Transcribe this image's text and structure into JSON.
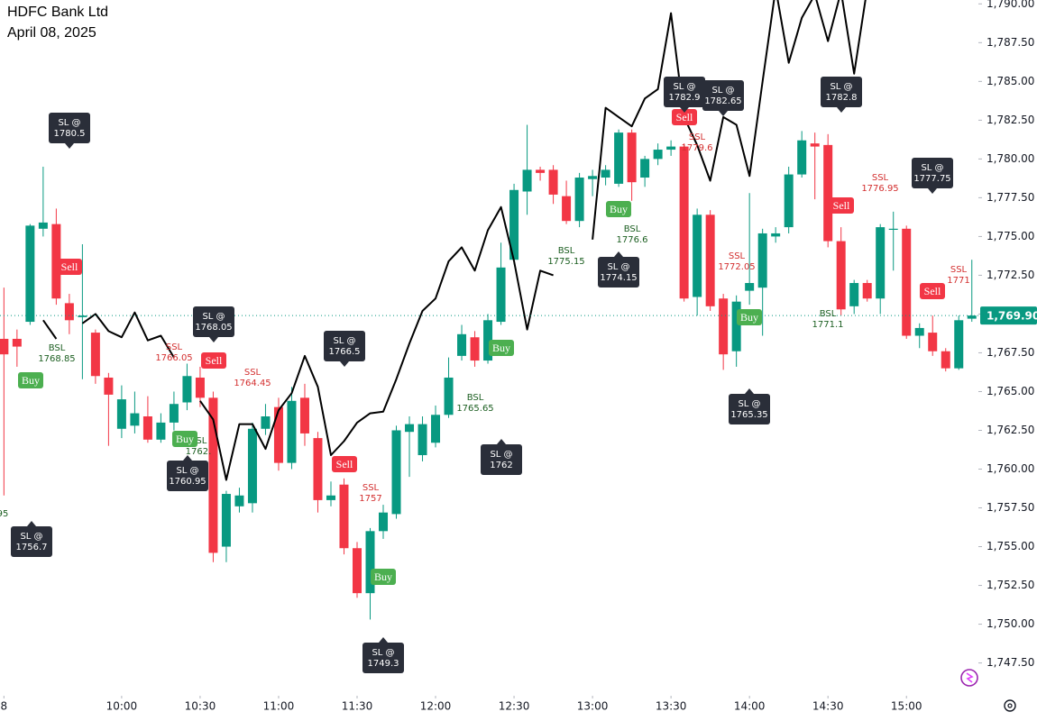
{
  "chart_data": {
    "type": "candlestick",
    "title": "HDFC Bank Ltd",
    "subtitle": "April 08, 2025",
    "up_color": "#089981",
    "down_color": "#f23645",
    "open": [
      1768.4,
      1768.4,
      1769.5,
      1775.5,
      1775.8,
      1770.7,
      1769.8,
      1768.8,
      1765.9,
      1762.6,
      1762.8,
      1763.4,
      1761.9,
      1763,
      1764.3,
      1765.9,
      1764.6,
      1755,
      1757.6,
      1757.8,
      1762.6,
      1764,
      1760.4,
      1764.6,
      1762,
      1758,
      1759,
      1754.9,
      1752,
      1756,
      1757.1,
      1762.4,
      1760.9,
      1761.7,
      1763.5,
      1767.3,
      1768.5,
      1767,
      1769.5,
      1773.5,
      1777.9,
      1779.3,
      1779.3,
      1777.6,
      1776,
      1778.7,
      1778.8,
      1778.4,
      1781.7,
      1778.8,
      1780,
      1780.6,
      1780.8,
      1771.1,
      1776.4,
      1771,
      1767.6,
      1771.5,
      1771.7,
      1775,
      1775.6,
      1779,
      1781,
      1780.9,
      1774.7,
      1770.5,
      1772,
      1771,
      1775.5,
      1775.5,
      1768.6,
      1768.8,
      1767.6,
      1766.5,
      1769.7
    ],
    "high": [
      1771.7,
      1769,
      1775.8,
      1779.5,
      1776.8,
      1771.3,
      1774.5,
      1769,
      1766.2,
      1765.4,
      1765,
      1764.7,
      1763.6,
      1765,
      1766.8,
      1766.6,
      1765,
      1758.6,
      1758.8,
      1763,
      1764.2,
      1764.6,
      1765.3,
      1765.5,
      1762.4,
      1759.2,
      1759.4,
      1755.3,
      1756.2,
      1757.7,
      1762.8,
      1763.4,
      1763.4,
      1764.1,
      1767.2,
      1769.3,
      1768.9,
      1770,
      1774.6,
      1778.4,
      1782.2,
      1779.5,
      1779.6,
      1778.6,
      1779.1,
      1779.3,
      1779.6,
      1781.9,
      1781.9,
      1780.2,
      1781,
      1781.2,
      1781,
      1776.8,
      1776.7,
      1771.3,
      1771.2,
      1777.8,
      1775.5,
      1775.6,
      1779.5,
      1781.8,
      1781.7,
      1781.6,
      1775.6,
      1772.2,
      1772.2,
      1775.8,
      1776.6,
      1775.7,
      1769.4,
      1769.9,
      1767.8,
      1769.9,
      1773.5
    ],
    "low": [
      1758.3,
      1766.6,
      1769.3,
      1775,
      1770.6,
      1768.7,
      1765.8,
      1765.5,
      1761.5,
      1762,
      1762.3,
      1761.7,
      1761.7,
      1762.5,
      1763.8,
      1764,
      1754,
      1754,
      1757.2,
      1757.2,
      1762.2,
      1759.9,
      1760,
      1761.5,
      1757.2,
      1757.6,
      1754.5,
      1751.7,
      1750.3,
      1755.5,
      1756.8,
      1759.5,
      1760.5,
      1761.4,
      1763.3,
      1767,
      1766.6,
      1766.8,
      1769.3,
      1773.2,
      1776.4,
      1778.6,
      1777.1,
      1775.8,
      1775.6,
      1777.6,
      1778.3,
      1778.2,
      1777.3,
      1778.2,
      1779.6,
      1780.2,
      1770.8,
      1769.9,
      1770.2,
      1766.4,
      1766.6,
      1770.6,
      1768.6,
      1774.6,
      1775.2,
      1778.8,
      1777.4,
      1774.3,
      1769.9,
      1770,
      1770.8,
      1770,
      1772.8,
      1768.4,
      1767.8,
      1767.3,
      1766.3,
      1766.4,
      1769.5
    ],
    "close": [
      1767.4,
      1767.9,
      1775.7,
      1775.9,
      1771,
      1769.6,
      1769.9,
      1766,
      1764.8,
      1764.5,
      1763.6,
      1761.9,
      1763,
      1764.2,
      1766,
      1764.6,
      1754.6,
      1758.4,
      1758.3,
      1762.6,
      1763.4,
      1760.4,
      1764.4,
      1762.3,
      1758,
      1758.3,
      1754.9,
      1752,
      1756,
      1757.2,
      1762.5,
      1762.9,
      1762.9,
      1763.5,
      1765.9,
      1768.7,
      1767,
      1769.6,
      1773,
      1778,
      1779.3,
      1779.1,
      1777.7,
      1776,
      1778.8,
      1778.9,
      1779.3,
      1781.7,
      1778.5,
      1780,
      1780.6,
      1780.8,
      1771,
      1776.4,
      1770.5,
      1767.4,
      1770.8,
      1772,
      1775.2,
      1775.2,
      1779,
      1781.2,
      1780.8,
      1774.7,
      1770.3,
      1772,
      1771,
      1775.6,
      1775.5,
      1768.6,
      1769.1,
      1767.6,
      1766.5,
      1769.6,
      1769.9
    ],
    "line": {
      "color": "#000000",
      "values": [
        null,
        null,
        null,
        1769.6,
        1768.4,
        null,
        1769.4,
        1770,
        1768.9,
        1768.5,
        1770.1,
        1768.3,
        1768.6,
        1767.2,
        null,
        1764.4,
        1763.2,
        1759.3,
        1762.9,
        1762.9,
        1761.3,
        1763.8,
        1764.9,
        1767.3,
        1765.3,
        1760.9,
        1761.8,
        1763,
        1763.6,
        1763.7,
        1765.8,
        1768.1,
        1770.2,
        1771,
        1773.4,
        1774.3,
        1772.8,
        1775.4,
        1776.9,
        1773.4,
        1769,
        1772.8,
        1772.5,
        null,
        null,
        1774.8,
        1783.3,
        1782.7,
        1782.1,
        1783.9,
        1784.5,
        1789.4,
        1782.7,
        1780.9,
        1778.6,
        1782.7,
        1782.2,
        1778.9,
        1785,
        1791,
        1786.2,
        1789.1,
        1790.6,
        1787.6,
        1790.8,
        1785.5,
        1791,
        null,
        null,
        null,
        null,
        null,
        null,
        null,
        null
      ]
    },
    "xlim": [
      -0.3,
      74.5
    ],
    "xticks": [
      {
        "value": 0,
        "label": "8"
      },
      {
        "value": 9,
        "label": "10:00"
      },
      {
        "value": 15,
        "label": "10:30"
      },
      {
        "value": 21,
        "label": "11:00"
      },
      {
        "value": 27,
        "label": "11:30"
      },
      {
        "value": 33,
        "label": "12:00"
      },
      {
        "value": 39,
        "label": "12:30"
      },
      {
        "value": 45,
        "label": "13:00"
      },
      {
        "value": 51,
        "label": "13:30"
      },
      {
        "value": 57,
        "label": "14:00"
      },
      {
        "value": 63,
        "label": "14:30"
      },
      {
        "value": 69,
        "label": "15:00"
      }
    ],
    "ylim": [
      1745.5,
      1790.25
    ],
    "yticks": [
      {
        "value": 1747.5,
        "label": "1,747.50"
      },
      {
        "value": 1750,
        "label": "1,750.00"
      },
      {
        "value": 1752.5,
        "label": "1,752.50"
      },
      {
        "value": 1755,
        "label": "1,755.00"
      },
      {
        "value": 1757.5,
        "label": "1,757.50"
      },
      {
        "value": 1760,
        "label": "1,760.00"
      },
      {
        "value": 1762.5,
        "label": "1,762.50"
      },
      {
        "value": 1765,
        "label": "1,765.00"
      },
      {
        "value": 1767.5,
        "label": "1,767.50"
      },
      {
        "value": 1770,
        "label": "1,770.00"
      },
      {
        "value": 1772.5,
        "label": "1,772.50"
      },
      {
        "value": 1775,
        "label": "1,775.00"
      },
      {
        "value": 1777.5,
        "label": "1,777.50"
      },
      {
        "value": 1780,
        "label": "1,780.00"
      },
      {
        "value": 1782.5,
        "label": "1,782.50"
      },
      {
        "value": 1785,
        "label": "1,785.00"
      },
      {
        "value": 1787.5,
        "label": "1,787.50"
      },
      {
        "value": 1790,
        "label": "1,790.00"
      }
    ],
    "last_price": {
      "value": 1769.9,
      "label": "1,769.90"
    },
    "sl_labels": [
      [
        "SL @",
        "1780.5"
      ],
      [
        "SL @",
        "1756.7"
      ],
      [
        "SL @",
        "1768.05"
      ],
      [
        "SL @",
        "1760.95"
      ],
      [
        "SL @",
        "1766.5"
      ],
      [
        "SL @",
        "1749.3"
      ],
      [
        "SL @",
        "1762"
      ],
      [
        "SL @",
        "1774.15"
      ],
      [
        "SL @",
        "1782.9"
      ],
      [
        "SL @",
        "1782.65"
      ],
      [
        "SL @",
        "1765.35"
      ],
      [
        "SL @",
        "1782.8"
      ],
      [
        "SL @",
        "1777.75"
      ]
    ],
    "buy_labels": [
      "Buy",
      "Buy",
      "Buy",
      "Buy",
      "Buy",
      "Buy"
    ],
    "sell_labels": [
      "Sell",
      "Sell",
      "Sell",
      "Sell",
      "Sell",
      "Sell"
    ],
    "bsl_labels": [
      [
        "BSL",
        "1768.85"
      ],
      [
        "BSL",
        "1762."
      ],
      [
        "BSL",
        "1765.65"
      ],
      [
        "BSL",
        "1775.15"
      ],
      [
        "BSL",
        "1776.6"
      ],
      [
        "BSL",
        "1771.1"
      ],
      [
        "95"
      ]
    ],
    "ssl_labels": [
      [
        "SSL",
        "1766.05"
      ],
      [
        "SSL",
        "1764.45"
      ],
      [
        "SSL",
        "1757"
      ],
      [
        "SSL",
        "1779.6"
      ],
      [
        "SSL",
        "1772.05"
      ],
      [
        "SSL",
        "1776.95"
      ],
      [
        "SSL",
        "1771"
      ]
    ]
  }
}
